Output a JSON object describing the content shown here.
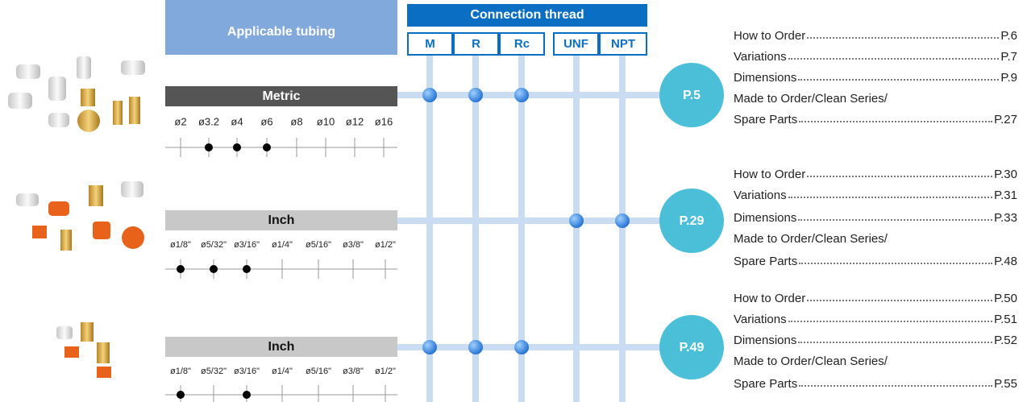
{
  "header": {
    "tubing": "Applicable tubing",
    "thread": "Connection thread",
    "threads": [
      "M",
      "R",
      "Rc",
      "UNF",
      "NPT"
    ]
  },
  "groups": [
    {
      "tubing": "Metric",
      "sizes": [
        "ø2",
        "ø3.2",
        "ø4",
        "ø6",
        "ø8",
        "ø10",
        "ø12",
        "ø16"
      ],
      "page": "P.5",
      "contents": [
        {
          "label": "How to Order",
          "page": "P.6"
        },
        {
          "label": "Variations",
          "page": "P.7"
        },
        {
          "label": "Dimensions",
          "page": "P.9"
        },
        {
          "label": "Made to Order/Clean Series/"
        },
        {
          "label": "Spare Parts",
          "page": "P.27"
        }
      ]
    },
    {
      "tubing": "Inch",
      "sizes": [
        "ø1/8\"",
        "ø5/32\"",
        "ø3/16\"",
        "ø1/4\"",
        "ø5/16\"",
        "ø3/8\"",
        "ø1/2\""
      ],
      "page": "P.29",
      "contents": [
        {
          "label": "How to Order",
          "page": "P.30"
        },
        {
          "label": "Variations",
          "page": "P.31"
        },
        {
          "label": "Dimensions",
          "page": "P.33"
        },
        {
          "label": "Made to Order/Clean Series/"
        },
        {
          "label": "Spare Parts",
          "page": "P.48"
        }
      ]
    },
    {
      "tubing": "Inch",
      "sizes": [
        "ø1/8\"",
        "ø5/32\"",
        "ø3/16\"",
        "ø1/4\"",
        "ø5/16\"",
        "ø3/8\"",
        "ø1/2\""
      ],
      "page": "P.49",
      "contents": [
        {
          "label": "How to Order",
          "page": "P.50"
        },
        {
          "label": "Variations",
          "page": "P.51"
        },
        {
          "label": "Dimensions",
          "page": "P.52"
        },
        {
          "label": "Made to Order/Clean Series/"
        },
        {
          "label": "Spare Parts",
          "page": "P.55"
        }
      ]
    }
  ]
}
